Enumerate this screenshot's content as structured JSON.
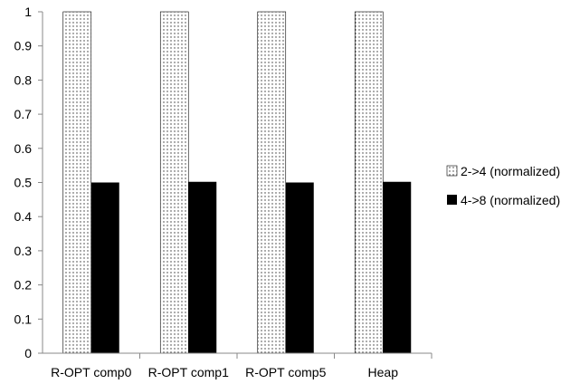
{
  "chart_data": {
    "type": "bar",
    "categories": [
      "R-OPT comp0",
      "R-OPT comp1",
      "R-OPT comp5",
      "Heap"
    ],
    "series": [
      {
        "name": "2->4 (normalized)",
        "values": [
          1,
          1,
          1,
          1
        ],
        "pattern": "dotted"
      },
      {
        "name": "4->8 (normalized)",
        "values": [
          0.5,
          0.502,
          0.5,
          0.502
        ],
        "pattern": "solid"
      }
    ],
    "ylim": [
      0,
      1
    ],
    "yticks": [
      "0",
      "0.1",
      "0.2",
      "0.3",
      "0.4",
      "0.5",
      "0.6",
      "0.7",
      "0.8",
      "0.9",
      "1"
    ],
    "grid": false,
    "legend_position": "right",
    "colors": {
      "dotted_fill": "#ffffff",
      "dot": "#333333",
      "solid_fill": "#000000",
      "axis": "#888888"
    }
  }
}
